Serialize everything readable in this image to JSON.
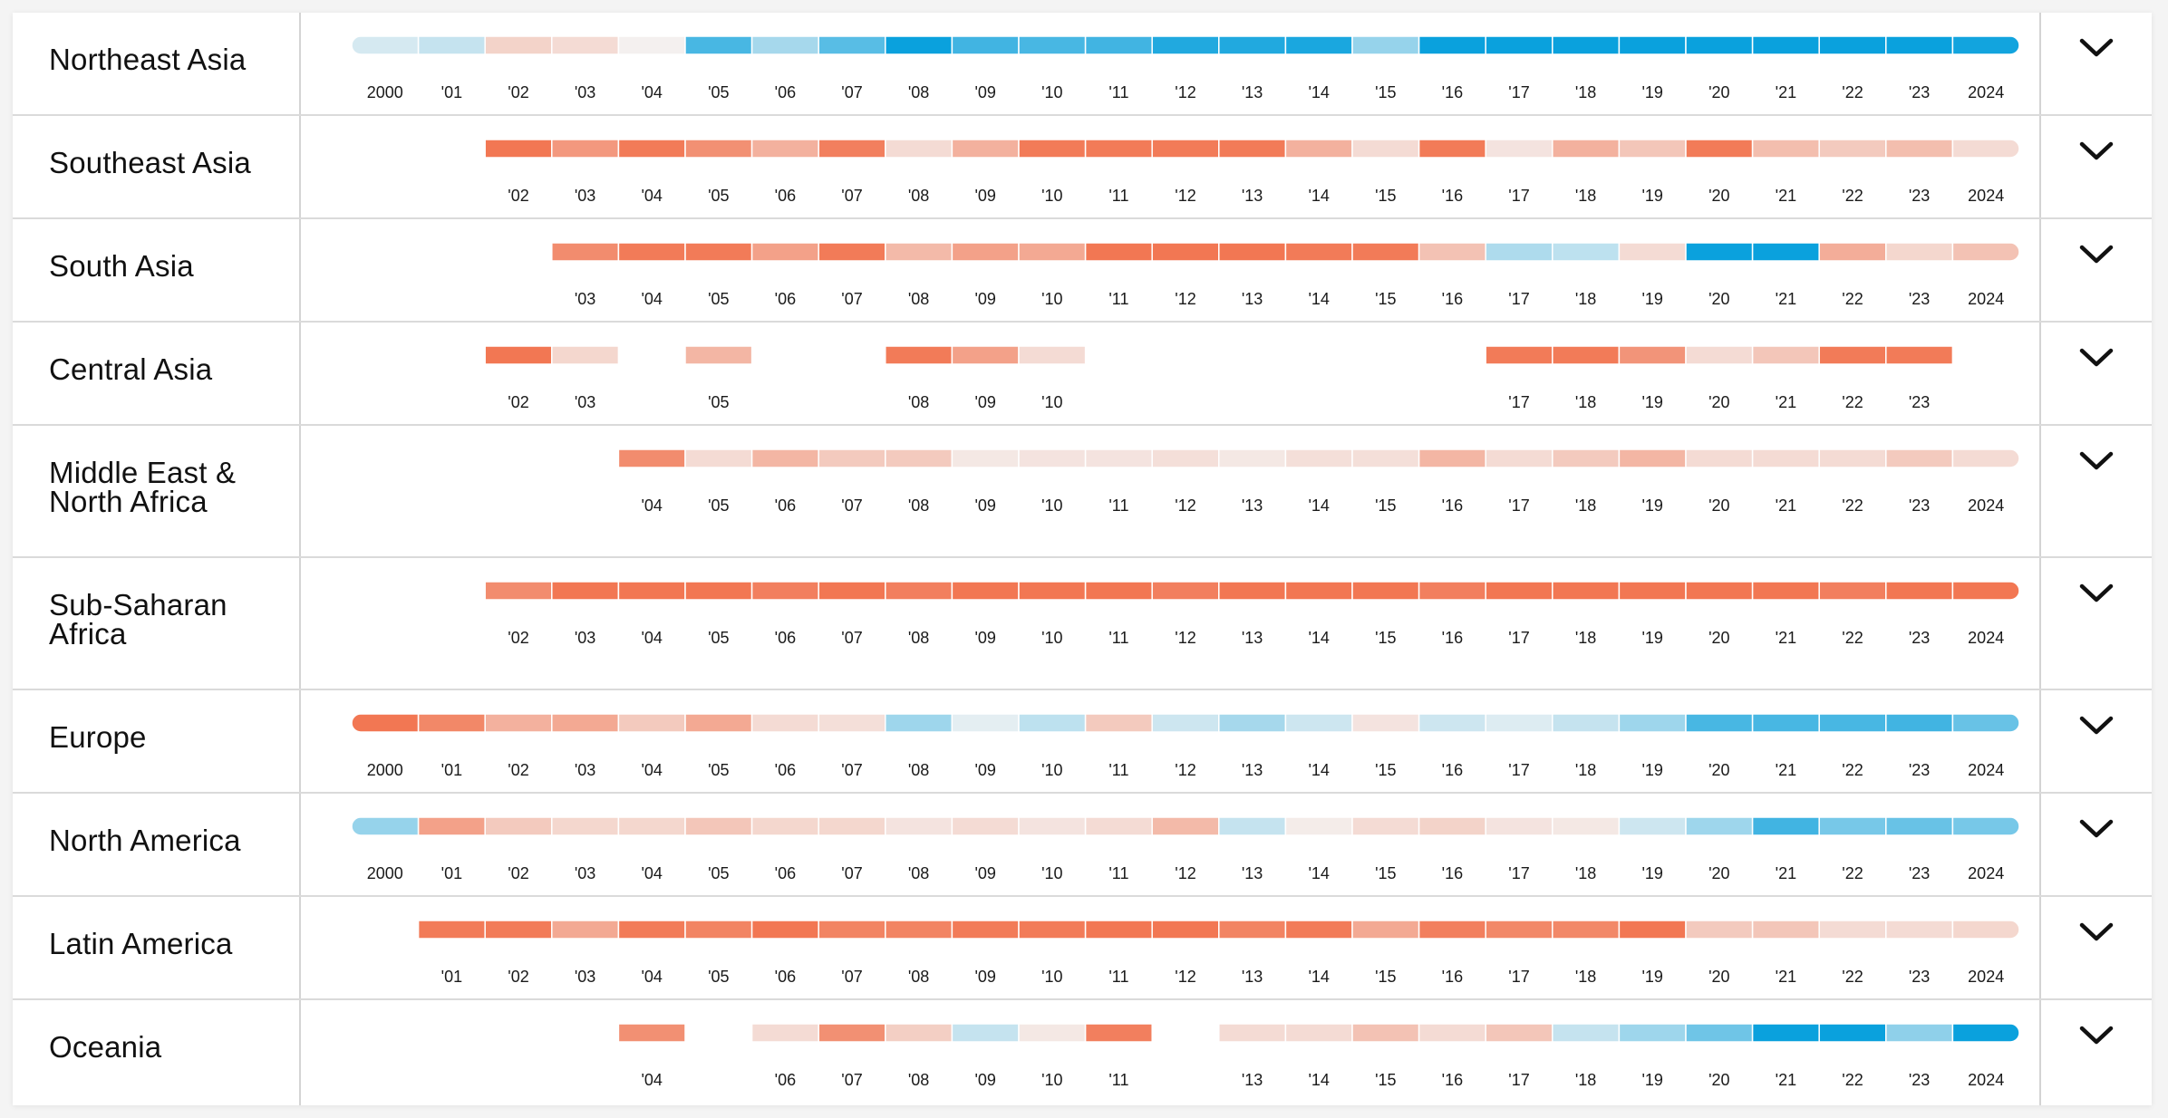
{
  "chart_data": {
    "type": "heatmap",
    "years": [
      2000,
      2001,
      2002,
      2003,
      2004,
      2005,
      2006,
      2007,
      2008,
      2009,
      2010,
      2011,
      2012,
      2013,
      2014,
      2015,
      2016,
      2017,
      2018,
      2019,
      2020,
      2021,
      2022,
      2023,
      2024
    ],
    "tick_labels": [
      "2000",
      "'01",
      "'02",
      "'03",
      "'04",
      "'05",
      "'06",
      "'07",
      "'08",
      "'09",
      "'10",
      "'11",
      "'12",
      "'13",
      "'14",
      "'15",
      "'16",
      "'17",
      "'18",
      "'19",
      "'20",
      "'21",
      "'22",
      "'23",
      "2024"
    ],
    "value_scale": "diverging: -3 (strong blue) to +3 (strong red); null = no data",
    "colors": {
      "red_strong": "#f27753",
      "blue_strong": "#0aa1dd",
      "neutral": "#f4f4f4"
    },
    "rows": [
      {
        "name": "Northeast Asia",
        "values": [
          -0.4,
          -0.6,
          0.8,
          0.6,
          0.1,
          -2.2,
          -1.0,
          -2.0,
          -3,
          -2.3,
          -2.2,
          -2.3,
          -2.7,
          -2.7,
          -2.8,
          -1.2,
          -3,
          -3,
          -3,
          -3,
          -3,
          -3,
          -3,
          -3,
          -2.9
        ]
      },
      {
        "name": "Southeast Asia",
        "values": [
          null,
          null,
          3,
          2.2,
          2.9,
          2.4,
          1.6,
          2.8,
          0.6,
          1.6,
          2.9,
          2.9,
          2.9,
          2.9,
          1.6,
          0.6,
          2.9,
          0.4,
          1.6,
          1.1,
          2.9,
          1.3,
          1.0,
          1.3,
          0.6
        ]
      },
      {
        "name": "South Asia",
        "values": [
          null,
          null,
          null,
          2.5,
          2.9,
          2.9,
          2.0,
          2.9,
          1.4,
          2.0,
          1.8,
          3,
          3,
          3,
          2.9,
          2.9,
          1.2,
          -0.9,
          -0.7,
          0.6,
          -3,
          -3,
          1.7,
          0.7,
          1.2
        ]
      },
      {
        "name": "Central Asia",
        "values": [
          null,
          null,
          3,
          0.7,
          null,
          1.5,
          null,
          null,
          2.9,
          2.0,
          0.6,
          null,
          null,
          null,
          null,
          null,
          null,
          2.9,
          2.9,
          2.3,
          0.6,
          1.1,
          2.9,
          2.9,
          null
        ]
      },
      {
        "name": "Middle East &\nNorth Africa",
        "values": [
          null,
          null,
          null,
          null,
          2.5,
          0.6,
          1.5,
          1.0,
          1.0,
          0.3,
          0.4,
          0.4,
          0.5,
          0.3,
          0.5,
          0.5,
          1.5,
          0.6,
          1.0,
          1.5,
          0.6,
          0.6,
          0.6,
          1.0,
          0.6
        ]
      },
      {
        "name": "Sub-Saharan\nAfrica",
        "values": [
          null,
          null,
          2.5,
          3,
          3,
          3,
          2.8,
          3,
          2.8,
          3,
          3,
          3,
          2.8,
          3,
          3,
          3,
          2.8,
          3,
          3,
          3,
          3,
          3,
          2.8,
          3,
          3
        ]
      },
      {
        "name": "Europe",
        "values": [
          3,
          2.6,
          1.6,
          1.8,
          1.0,
          1.8,
          0.6,
          0.5,
          -1.1,
          -0.2,
          -0.7,
          1.0,
          -0.5,
          -1.0,
          -0.5,
          0.4,
          -0.5,
          -0.3,
          -0.6,
          -1.1,
          -2.2,
          -2.2,
          -2.2,
          -2.3,
          -1.8
        ]
      },
      {
        "name": "North America",
        "values": [
          -1.2,
          2.0,
          1.0,
          0.7,
          0.7,
          1.1,
          0.7,
          0.7,
          0.4,
          0.6,
          0.4,
          0.6,
          1.4,
          -0.6,
          0.2,
          0.6,
          0.8,
          0.4,
          0.3,
          -0.5,
          -1.1,
          -2.3,
          -1.6,
          -1.8,
          -1.6
        ]
      },
      {
        "name": "Latin America",
        "values": [
          null,
          2.9,
          2.9,
          1.8,
          2.9,
          2.7,
          3,
          2.7,
          2.7,
          2.9,
          2.9,
          3,
          3,
          2.7,
          2.9,
          1.8,
          2.8,
          2.6,
          2.6,
          3,
          1.0,
          1.1,
          0.6,
          0.6,
          0.7
        ]
      },
      {
        "name": "Oceania",
        "values": [
          null,
          null,
          null,
          null,
          2.4,
          null,
          0.6,
          2.4,
          0.9,
          -0.6,
          0.3,
          2.8,
          null,
          0.6,
          0.6,
          1.2,
          0.6,
          1.1,
          -0.6,
          -1.1,
          -1.7,
          -3,
          -3,
          -1.3,
          -3
        ]
      }
    ]
  },
  "toggle": {
    "icon": "chevron-down-icon"
  }
}
